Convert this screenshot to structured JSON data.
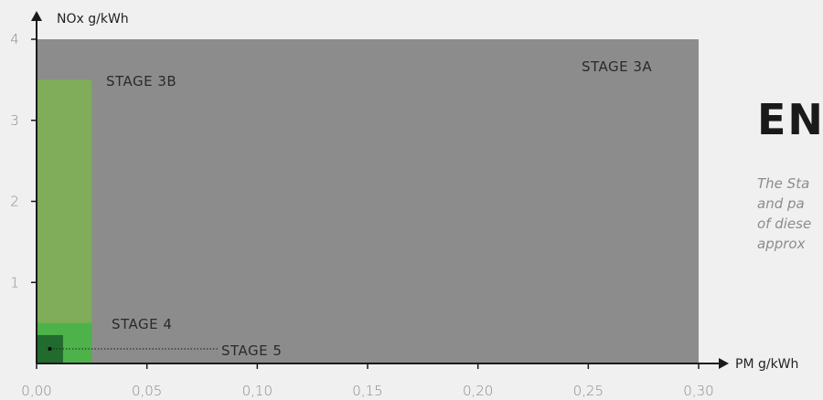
{
  "heading": "EN",
  "intro_lines": [
    "The Sta",
    "and pa",
    "of diese",
    "approx"
  ],
  "colors": {
    "stage_3a": "#8c8c8c",
    "stage_3b": "#7fad5a",
    "stage_4": "#4db24a",
    "stage_5": "#226b2e",
    "axis": "#1a1a1a",
    "background": "#f0f0f0"
  },
  "chart_data": {
    "type": "area",
    "title": "",
    "xlabel": "PM g/kWh",
    "ylabel": "NOx g/kWh",
    "xlim": [
      0,
      0.3
    ],
    "ylim": [
      0,
      4
    ],
    "x_ticks": [
      0,
      0.05,
      0.1,
      0.15,
      0.2,
      0.25,
      0.3
    ],
    "x_tick_labels": [
      "0,00",
      "0,05",
      "0,10",
      "0,15",
      "0,20",
      "0,25",
      "0,30"
    ],
    "y_ticks": [
      1,
      2,
      3,
      4
    ],
    "y_tick_labels": [
      "1",
      "2",
      "3",
      "4"
    ],
    "regions": [
      {
        "name": "STAGE 3A",
        "pm_max": 0.3,
        "nox_max": 4.0
      },
      {
        "name": "STAGE 3B",
        "pm_max": 0.025,
        "nox_max": 3.5
      },
      {
        "name": "STAGE 4",
        "pm_max": 0.025,
        "nox_max": 0.5
      },
      {
        "name": "STAGE 5",
        "pm_max": 0.012,
        "nox_max": 0.35
      }
    ],
    "points": [
      {
        "pm": 0.006,
        "nox": 0.18
      }
    ],
    "grid": false,
    "legend": "none"
  }
}
